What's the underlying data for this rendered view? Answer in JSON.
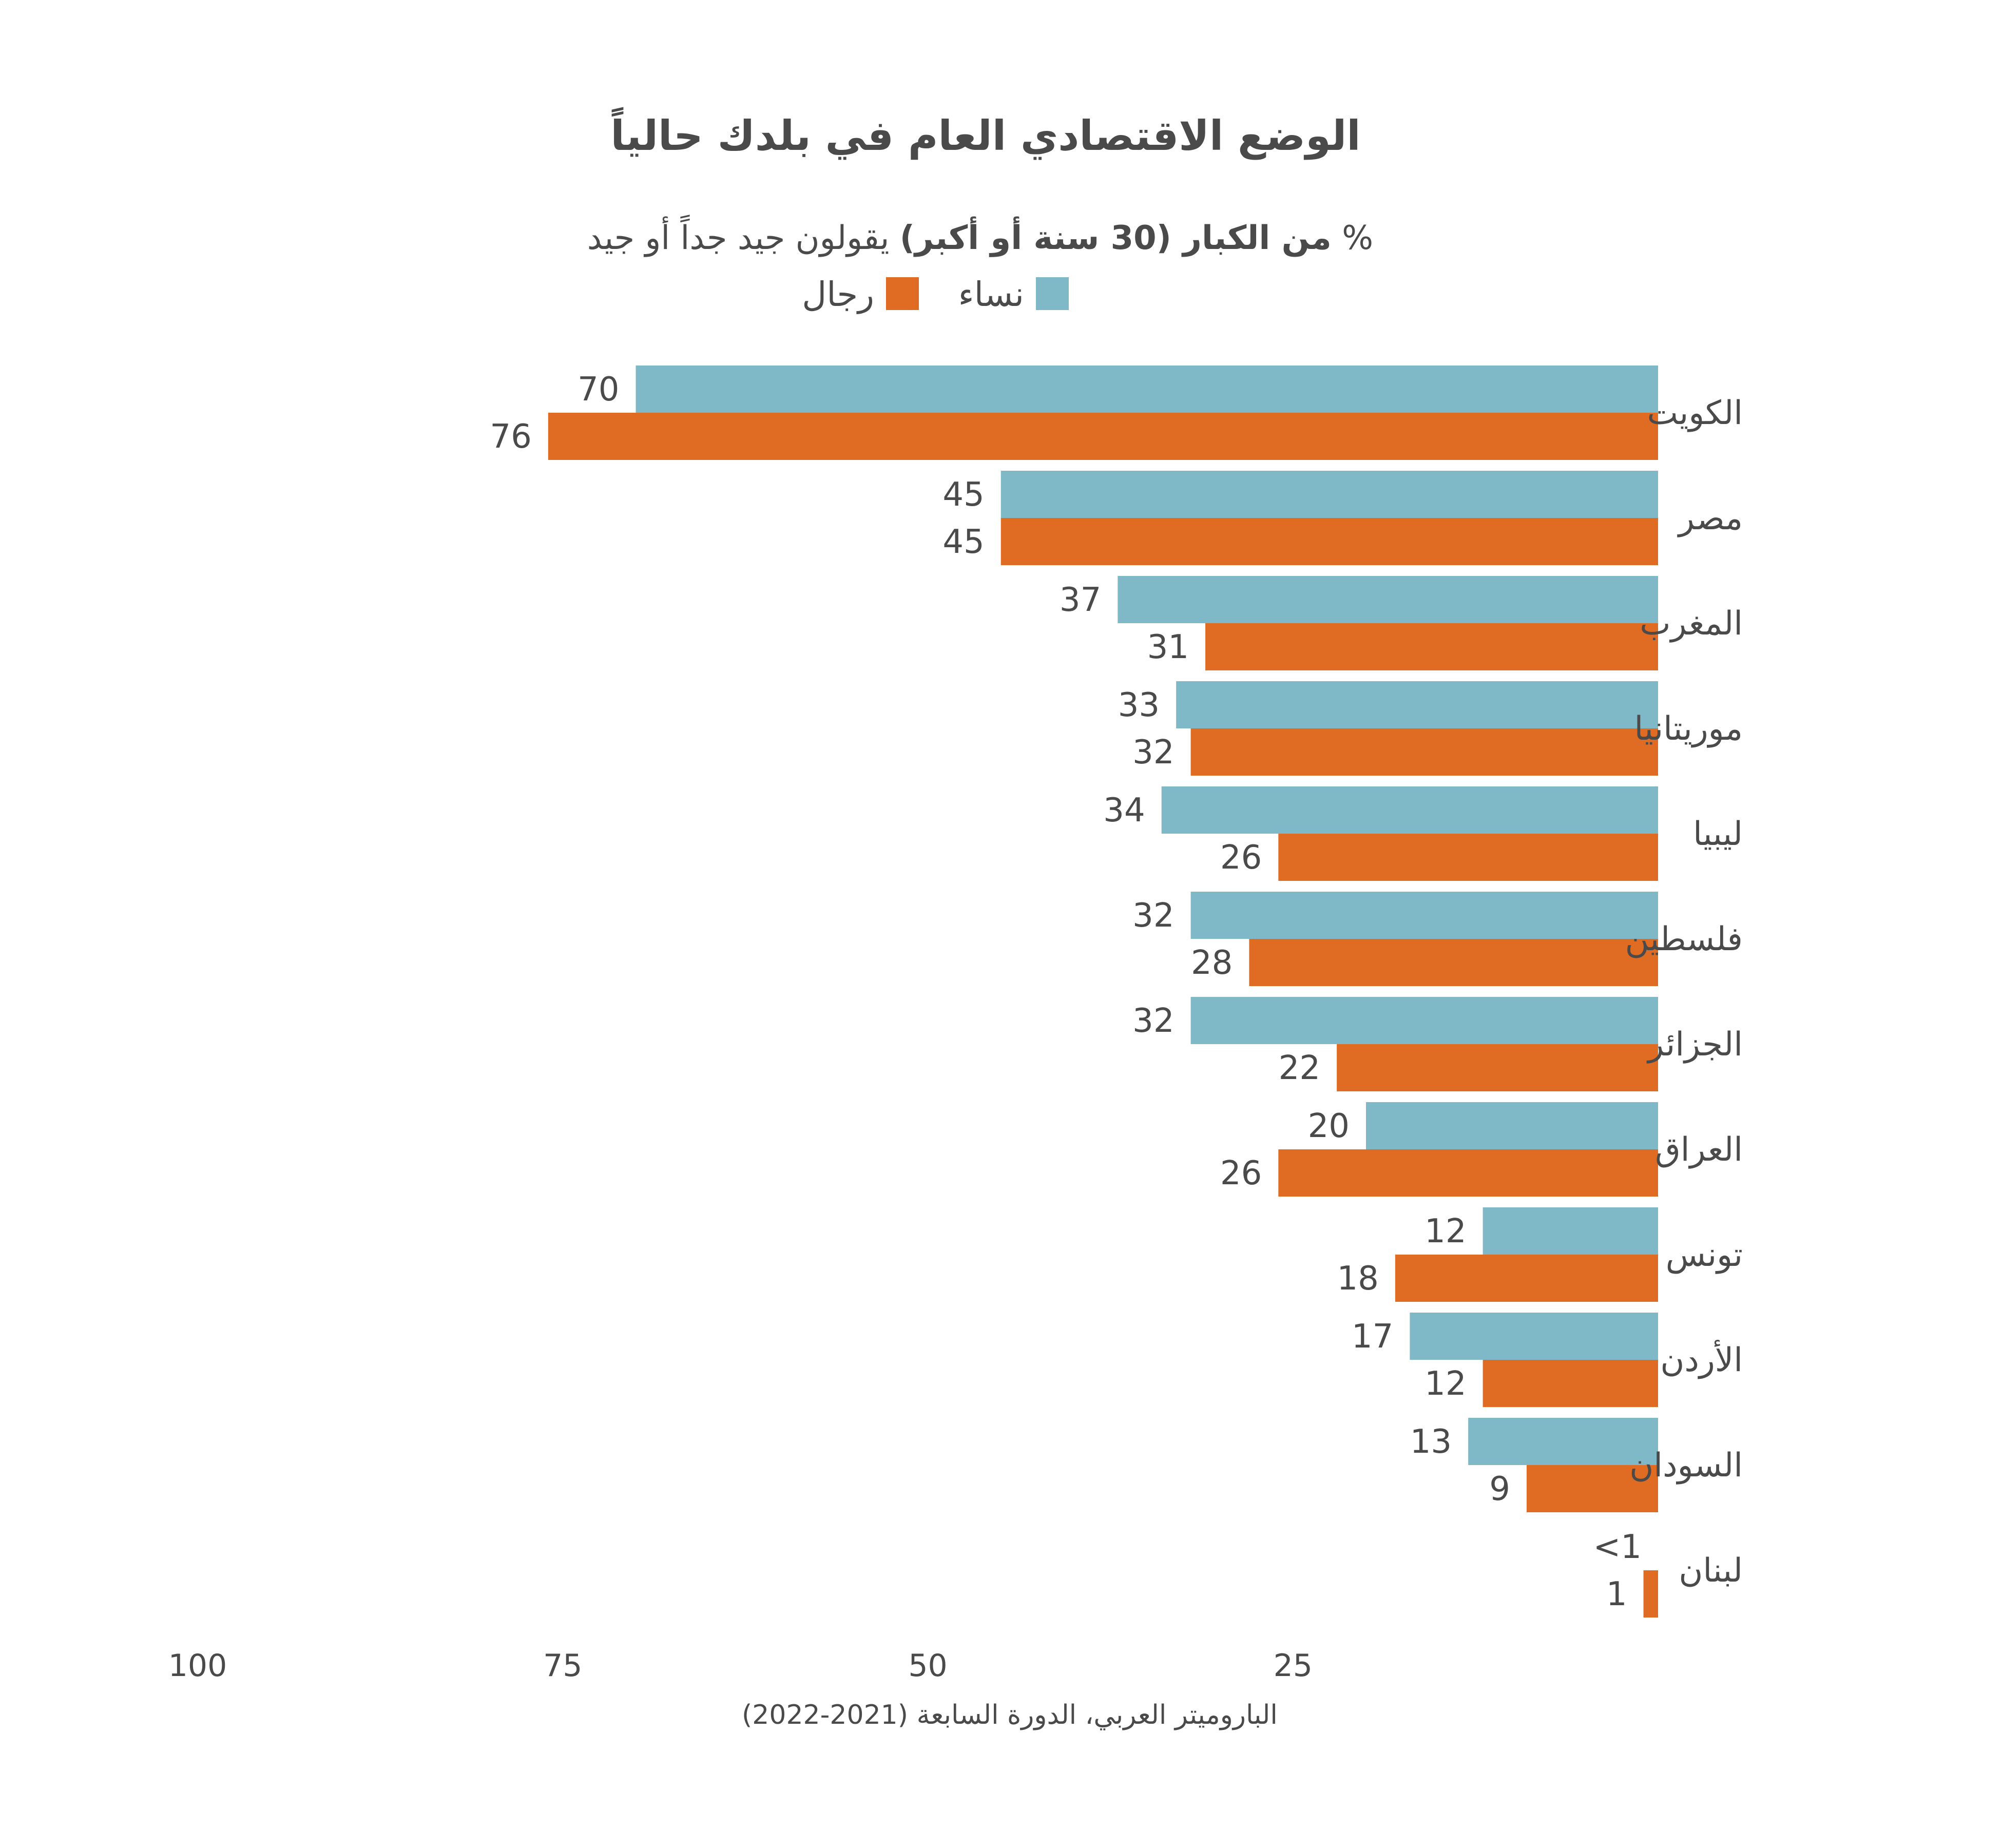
{
  "chart_data": {
    "type": "bar",
    "orientation": "horizontal",
    "title": "الوضع الاقتصادي العام في بلدك حالياً",
    "subtitle_pre": "%",
    "subtitle_bold": "من الكبار (30 سنة أو أكبر)",
    "subtitle_post": "يقولون جيد جداً أو جيد",
    "categories": [
      "الكويت",
      "مصر",
      "المغرب",
      "موريتانيا",
      "ليبيا",
      "فلسطين",
      "الجزائر",
      "العراق",
      "تونس",
      "الأردن",
      "السودان",
      "لبنان"
    ],
    "series": [
      {
        "name": "نساء",
        "color": "#7fb9c7",
        "values": [
          70,
          45,
          37,
          33,
          34,
          32,
          32,
          20,
          12,
          17,
          13,
          0
        ],
        "labels": [
          "70",
          "45",
          "37",
          "33",
          "34",
          "32",
          "32",
          "20",
          "12",
          "17",
          "13",
          "<1"
        ]
      },
      {
        "name": "رجال",
        "color": "#e06c23",
        "values": [
          76,
          45,
          31,
          32,
          26,
          28,
          22,
          26,
          18,
          12,
          9,
          1
        ],
        "labels": [
          "76",
          "45",
          "31",
          "32",
          "26",
          "28",
          "22",
          "26",
          "18",
          "12",
          "9",
          "1"
        ]
      }
    ],
    "xlim": [
      0,
      100
    ],
    "x_reversed": true,
    "xticks": [
      "100",
      "75",
      "50",
      "25"
    ],
    "grid": false,
    "legend_position": "top-center",
    "source": "الباروميتر العربي، الدورة السابعة (2021-2022)"
  }
}
